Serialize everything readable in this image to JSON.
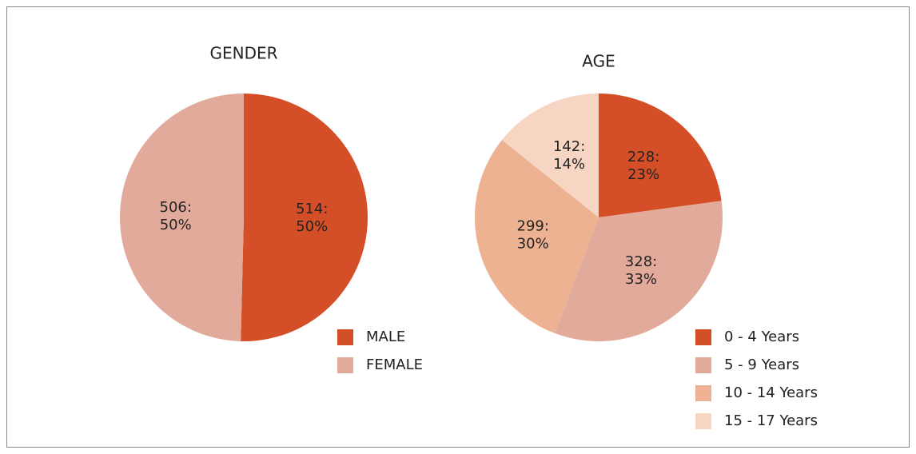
{
  "chart_data": [
    {
      "type": "pie",
      "title": "GENDER",
      "categories": [
        "MALE",
        "FEMALE"
      ],
      "values": [
        514,
        506
      ],
      "value_labels": [
        [
          "514:",
          "50%"
        ],
        [
          "506:",
          "50%"
        ]
      ],
      "colors": [
        "#d44f27",
        "#e2aa9b"
      ],
      "legend": "bottom-right"
    },
    {
      "type": "pie",
      "title": "AGE",
      "categories": [
        "0 - 4 Years",
        "5 - 9 Years",
        "10 - 14 Years",
        "15 - 17 Years"
      ],
      "values": [
        228,
        328,
        299,
        142
      ],
      "value_labels": [
        [
          "228:",
          "23%"
        ],
        [
          "328:",
          "33%"
        ],
        [
          "299:",
          "30%"
        ],
        [
          "142:",
          "14%"
        ]
      ],
      "colors": [
        "#d44f27",
        "#e2aa9b",
        "#edb292",
        "#f6d5c3"
      ],
      "legend": "bottom-right"
    }
  ]
}
